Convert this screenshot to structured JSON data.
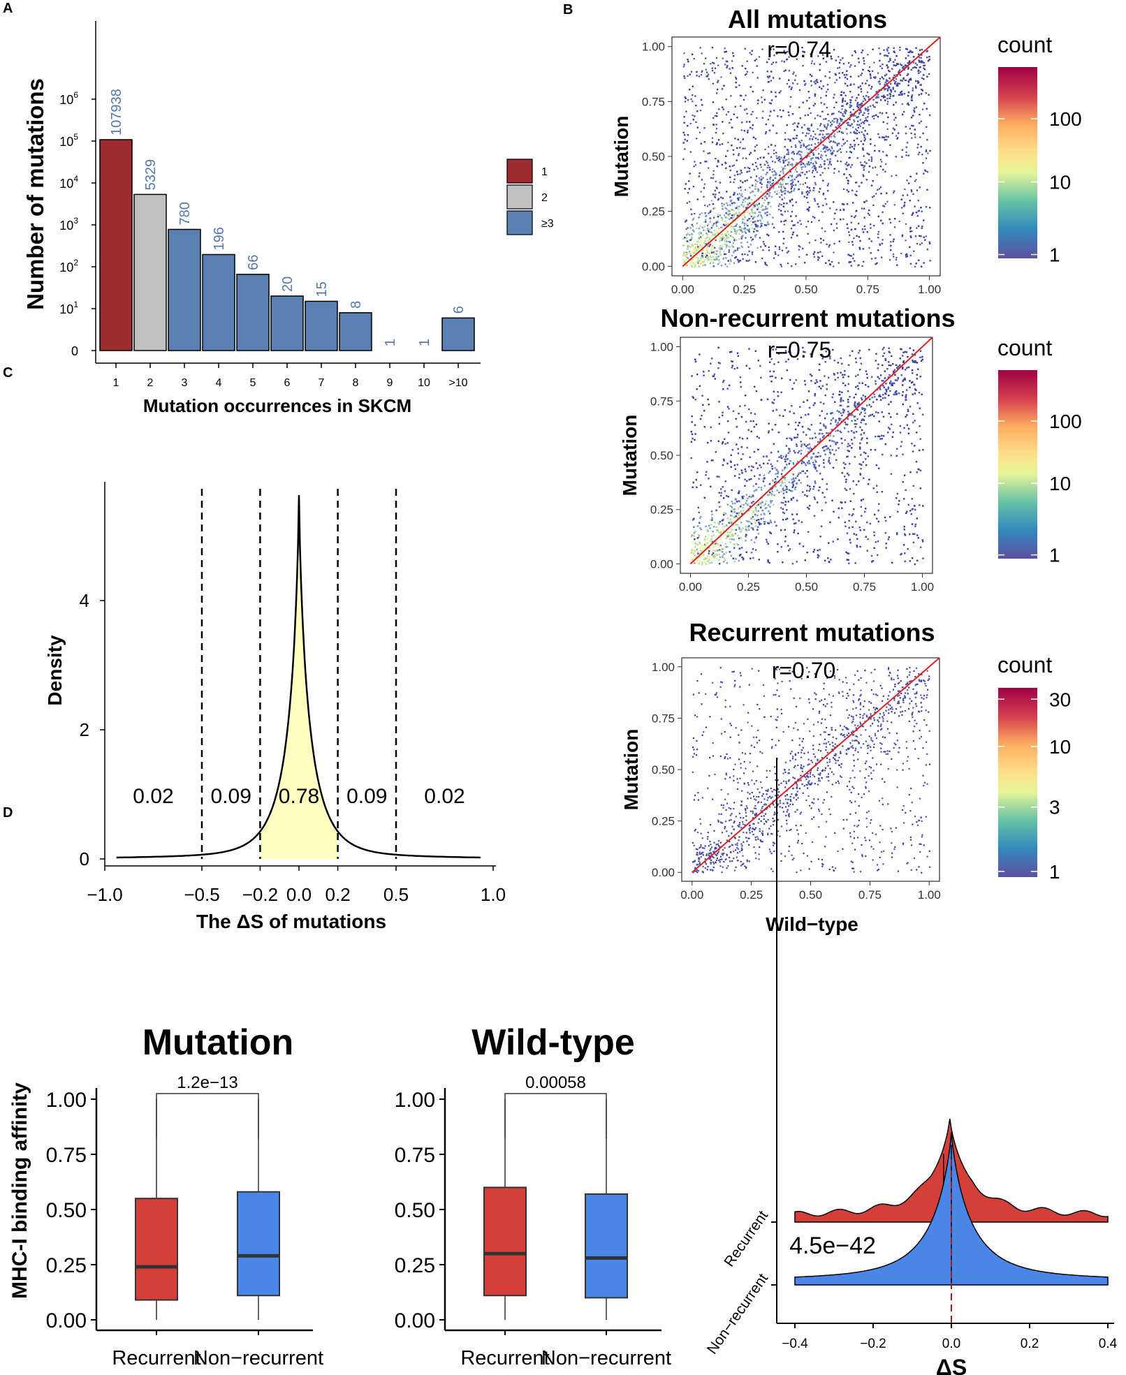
{
  "colors": {
    "red": "#9e2b2f",
    "grey": "#c0c0c0",
    "blue": "#5a7fb0",
    "label_blue": "#5577aa",
    "density_fill": "#ffffc2",
    "box_red": "#d43f3a",
    "box_blue": "#4a86e8",
    "ridge_red": "#d43f3a",
    "ridge_blue": "#4a86e8",
    "diag": "#e02020"
  },
  "chart_data": [
    {
      "panel": "A",
      "type": "bar",
      "title": "",
      "xlabel": "Mutation occurrences in SKCM",
      "ylabel": "Number of mutations",
      "y_scale": "log",
      "yticks": [
        {
          "base": "0",
          "exp": ""
        },
        {
          "base": "10",
          "exp": "1"
        },
        {
          "base": "10",
          "exp": "2"
        },
        {
          "base": "10",
          "exp": "3"
        },
        {
          "base": "10",
          "exp": "4"
        },
        {
          "base": "10",
          "exp": "5"
        },
        {
          "base": "10",
          "exp": "6"
        }
      ],
      "categories": [
        "1",
        "2",
        "3",
        "4",
        "5",
        "6",
        "7",
        "8",
        "9",
        "10",
        ">10"
      ],
      "values": [
        107938,
        5329,
        780,
        196,
        66,
        20,
        15,
        8,
        1,
        1,
        6
      ],
      "labels": [
        "107938",
        "5329",
        "780",
        "196",
        "66",
        "20",
        "15",
        "8",
        "1",
        "1",
        "6"
      ],
      "groups": [
        "1",
        "2",
        "≥3",
        "≥3",
        "≥3",
        "≥3",
        "≥3",
        "≥3",
        "≥3",
        "≥3",
        "≥3"
      ],
      "legend": [
        {
          "label": "1",
          "color_key": "red"
        },
        {
          "label": "2",
          "color_key": "grey"
        },
        {
          "label": "≥3",
          "color_key": "blue"
        }
      ]
    },
    {
      "panel": "B",
      "type": "scatter",
      "subplots": [
        {
          "title": "All mutations",
          "r_label": "r=0.74",
          "xlabel": "",
          "ylabel": "Mutation",
          "xlim": [
            0,
            1
          ],
          "ylim": [
            0,
            1
          ],
          "xticks": [
            "0.00",
            "0.25",
            "0.50",
            "0.75",
            "1.00"
          ],
          "yticks": [
            "0.00",
            "0.25",
            "0.50",
            "0.75",
            "1.00"
          ],
          "legend_title": "count",
          "legend_ticks": [
            "100",
            "10",
            "1"
          ]
        },
        {
          "title": "Non-recurrent mutations",
          "r_label": "r=0.75",
          "xlabel": "",
          "ylabel": "Mutation",
          "xlim": [
            0,
            1
          ],
          "ylim": [
            0,
            1
          ],
          "xticks": [
            "0.00",
            "0.25",
            "0.50",
            "0.75",
            "1.00"
          ],
          "yticks": [
            "0.00",
            "0.25",
            "0.50",
            "0.75",
            "1.00"
          ],
          "legend_title": "count",
          "legend_ticks": [
            "100",
            "10",
            "1"
          ]
        },
        {
          "title": "Recurrent mutations",
          "r_label": "r=0.70",
          "xlabel": "Wild−type",
          "ylabel": "Mutation",
          "xlim": [
            0,
            1
          ],
          "ylim": [
            0,
            1
          ],
          "xticks": [
            "0.00",
            "0.25",
            "0.50",
            "0.75",
            "1.00"
          ],
          "yticks": [
            "0.00",
            "0.25",
            "0.50",
            "0.75",
            "1.00"
          ],
          "legend_title": "count",
          "legend_ticks": [
            "30",
            "10",
            "3",
            "1"
          ]
        }
      ]
    },
    {
      "panel": "C",
      "type": "area",
      "xlabel": "The ΔS of mutations",
      "ylabel": "Density",
      "xlim": [
        -1.0,
        1.0
      ],
      "ylim": [
        0,
        5.6
      ],
      "xticks": [
        "−1.0",
        "−0.5",
        "−0.2",
        "0.0",
        "0.2",
        "0.5",
        "1.0"
      ],
      "xtick_values": [
        -1.0,
        -0.5,
        -0.2,
        0.0,
        0.2,
        0.5,
        1.0
      ],
      "yticks": [
        "0",
        "2",
        "4"
      ],
      "ytick_values": [
        0,
        2,
        4
      ],
      "cutoffs": [
        -0.5,
        -0.2,
        0.2,
        0.5
      ],
      "shaded_range": [
        -0.2,
        0.2
      ],
      "peak_density": 5.55,
      "region_labels": [
        {
          "x": -0.75,
          "label": "0.02"
        },
        {
          "x": -0.35,
          "label": "0.09"
        },
        {
          "x": 0.0,
          "label": "0.78"
        },
        {
          "x": 0.35,
          "label": "0.09"
        },
        {
          "x": 0.75,
          "label": "0.02"
        }
      ]
    },
    {
      "panel": "D",
      "type": "box",
      "subplots": [
        {
          "title": "Mutation",
          "pvalue": "1.2e−13",
          "ylabel": "MHC-I binding affinity",
          "categories": [
            "Recurrent",
            "Non−recurrent"
          ],
          "boxes": [
            {
              "min": 0.0,
              "q1": 0.09,
              "median": 0.24,
              "q3": 0.55,
              "max": 1.0
            },
            {
              "min": 0.0,
              "q1": 0.11,
              "median": 0.29,
              "q3": 0.58,
              "max": 1.0
            }
          ],
          "yticks": [
            "0.00",
            "0.25",
            "0.50",
            "0.75",
            "1.00"
          ]
        },
        {
          "title": "Wild-type",
          "pvalue": "0.00058",
          "ylabel": "",
          "categories": [
            "Recurrent",
            "Non−recurrent"
          ],
          "boxes": [
            {
              "min": 0.0,
              "q1": 0.11,
              "median": 0.3,
              "q3": 0.6,
              "max": 1.0
            },
            {
              "min": 0.0,
              "q1": 0.1,
              "median": 0.28,
              "q3": 0.57,
              "max": 1.0
            }
          ],
          "yticks": [
            "0.00",
            "0.25",
            "0.50",
            "0.75",
            "1.00"
          ]
        }
      ]
    },
    {
      "panel": "D-ridge",
      "type": "area",
      "xlabel": "ΔS",
      "xlim": [
        -0.4,
        0.4
      ],
      "xticks": [
        "−0.4",
        "−0.2",
        "0.0",
        "0.2",
        "0.4"
      ],
      "xtick_values": [
        -0.4,
        -0.2,
        0.0,
        0.2,
        0.4
      ],
      "series": [
        {
          "name": "Recurrent",
          "median": -0.02
        },
        {
          "name": "Non−recurrent",
          "median": 0.0
        }
      ],
      "pvalue": "4.5e−42"
    }
  ],
  "panel_labels": [
    "A",
    "B",
    "C",
    "D"
  ]
}
